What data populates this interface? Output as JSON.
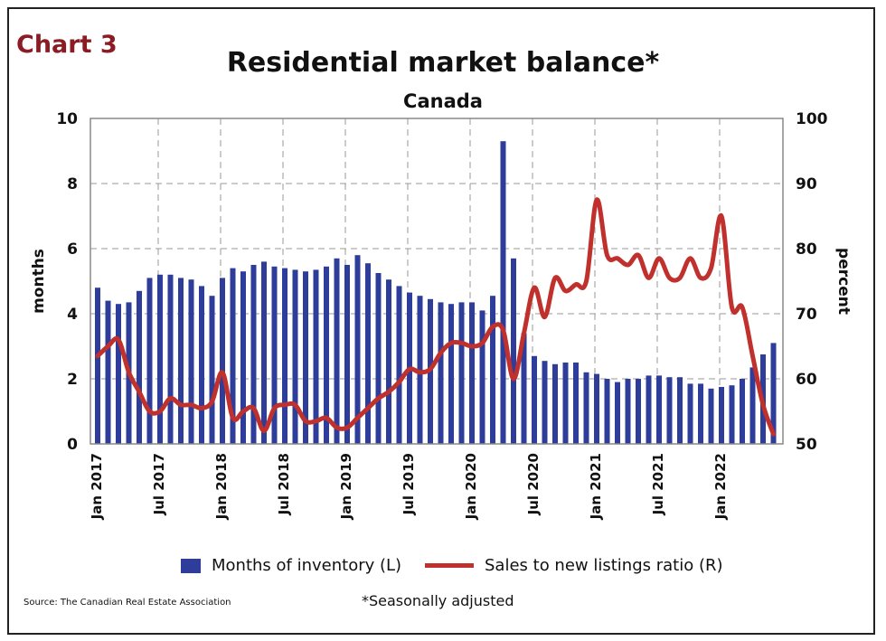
{
  "tag": "Chart 3",
  "chart_data": {
    "type": "bar+line",
    "title": "Residential market balance*",
    "subtitle": "Canada",
    "ylabel_left": "months",
    "ylabel_right": "percent",
    "ylim_left": [
      0,
      10
    ],
    "ylim_right": [
      50,
      100
    ],
    "yticks_left": [
      "0",
      "2",
      "4",
      "6",
      "8",
      "10"
    ],
    "yticks_right": [
      "50",
      "60",
      "70",
      "80",
      "90",
      "100"
    ],
    "xtick_labels": [
      "Jan 2017",
      "Jul 2017",
      "Jan 2018",
      "Jul 2018",
      "Jan 2019",
      "Jul 2019",
      "Jan 2020",
      "Jul 2020",
      "Jan 2021",
      "Jul 2021",
      "Jan 2022"
    ],
    "x_start": "Jan 2017",
    "x_end": "Jun 2022",
    "grid": true,
    "legend_placement": "bottom",
    "series": [
      {
        "name": "Months of inventory (L)",
        "type": "bar",
        "axis": "left",
        "color": "#2e3d9a",
        "values": [
          4.8,
          4.4,
          4.3,
          4.35,
          4.7,
          5.1,
          5.2,
          5.2,
          5.1,
          5.05,
          4.85,
          4.55,
          5.1,
          5.4,
          5.3,
          5.5,
          5.6,
          5.45,
          5.4,
          5.35,
          5.3,
          5.35,
          5.45,
          5.7,
          5.5,
          5.8,
          5.55,
          5.25,
          5.05,
          4.85,
          4.65,
          4.55,
          4.45,
          4.35,
          4.3,
          4.35,
          4.35,
          4.1,
          4.55,
          9.3,
          5.7,
          3.4,
          2.7,
          2.55,
          2.45,
          2.5,
          2.5,
          2.2,
          2.15,
          2.0,
          1.9,
          2.0,
          2.0,
          2.1,
          2.1,
          2.05,
          2.05,
          1.85,
          1.85,
          1.7,
          1.75,
          1.8,
          2.0,
          2.35,
          2.75,
          3.1
        ]
      },
      {
        "name": "Sales to new listings ratio (R)",
        "type": "line",
        "axis": "right",
        "color": "#c0302c",
        "values": [
          63.5,
          65,
          66,
          61,
          58,
          55,
          55,
          57,
          56,
          56,
          55.5,
          56.5,
          61,
          54,
          55,
          55.5,
          52,
          55.5,
          56,
          56,
          53.5,
          53.5,
          54,
          52.5,
          52.5,
          54,
          55.5,
          57,
          58,
          59.5,
          61.5,
          61,
          61.5,
          64,
          65.5,
          65.5,
          65,
          65.5,
          68,
          67.5,
          60,
          67,
          74,
          69.5,
          75.5,
          73.5,
          74.5,
          75,
          87.5,
          79,
          78.5,
          77.5,
          79,
          75.5,
          78.5,
          75.5,
          75.5,
          78.5,
          75.5,
          77,
          85,
          71,
          71,
          63.5,
          56,
          51.5
        ]
      }
    ],
    "source": "Source: The Canadian Real Estate Association",
    "note": "*Seasonally adjusted"
  }
}
